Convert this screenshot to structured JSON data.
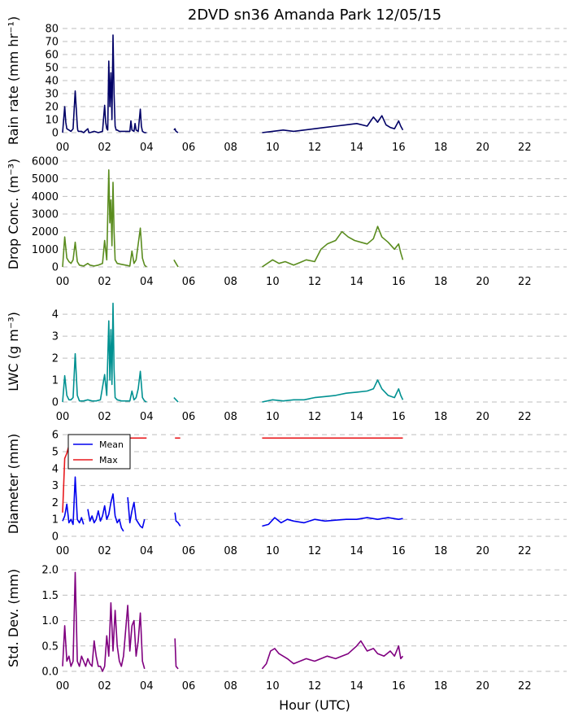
{
  "figure": {
    "title": "2DVD sn36 Amanda Park 12/05/15",
    "xlabel": "Hour (UTC)",
    "xtick_labels": [
      "00",
      "02",
      "04",
      "06",
      "08",
      "10",
      "12",
      "14",
      "16",
      "18",
      "20",
      "22"
    ]
  },
  "chart_data": [
    {
      "type": "line",
      "ylabel": "Rain rate (mm hr⁻¹)",
      "ylim": [
        0,
        80
      ],
      "yticks": [
        0,
        10,
        20,
        30,
        40,
        50,
        60,
        70,
        80
      ],
      "xlim": [
        0,
        24
      ],
      "grid": true,
      "series": [
        {
          "color": "#000066",
          "x": [
            0,
            0.1,
            0.15,
            0.2,
            0.3,
            0.4,
            0.5,
            0.6,
            0.7,
            0.72,
            0.75,
            0.8,
            0.9,
            1.0,
            1.2,
            1.25,
            1.3,
            1.5,
            1.7,
            1.9,
            2.0,
            2.05,
            2.1,
            2.15,
            2.2,
            2.25,
            2.3,
            2.35,
            2.4,
            2.45,
            2.5,
            2.55,
            2.6,
            2.7,
            2.8,
            3.0,
            3.2,
            3.25,
            3.3,
            3.4,
            3.45,
            3.5,
            3.6,
            3.7,
            3.75,
            3.8,
            3.9,
            4.0,
            null,
            5.3,
            5.35,
            5.4,
            5.5,
            null,
            9.5,
            10,
            10.5,
            11,
            11.5,
            12,
            12.5,
            13,
            13.5,
            14,
            14.5,
            14.8,
            15,
            15.2,
            15.4,
            15.6,
            15.8,
            16,
            16.1,
            16.2
          ],
          "y": [
            0,
            20,
            8,
            3,
            2,
            1,
            3,
            32,
            5,
            2,
            1,
            1,
            1,
            0,
            3,
            0,
            0,
            1,
            0,
            1,
            21,
            8,
            3,
            2,
            55,
            20,
            46,
            10,
            75,
            30,
            5,
            2,
            2,
            1,
            1,
            1,
            1,
            9,
            2,
            1,
            7,
            2,
            1,
            18,
            5,
            1,
            0,
            0,
            null,
            2,
            3,
            1,
            0,
            null,
            0,
            1,
            2,
            1,
            2,
            3,
            4,
            5,
            6,
            7,
            5,
            12,
            8,
            13,
            6,
            4,
            3,
            9,
            5,
            2
          ]
        }
      ]
    },
    {
      "type": "line",
      "ylabel": "Drop Conc. (m⁻³)",
      "ylim": [
        0,
        6000
      ],
      "yticks": [
        0,
        1000,
        2000,
        3000,
        4000,
        5000,
        6000
      ],
      "xlim": [
        0,
        24
      ],
      "grid": true,
      "series": [
        {
          "color": "#5a8c1e",
          "x": [
            0,
            0.1,
            0.2,
            0.3,
            0.4,
            0.5,
            0.6,
            0.7,
            0.8,
            1.0,
            1.2,
            1.3,
            1.5,
            1.7,
            1.9,
            2.0,
            2.1,
            2.2,
            2.25,
            2.3,
            2.35,
            2.4,
            2.45,
            2.5,
            2.6,
            2.8,
            3.0,
            3.2,
            3.3,
            3.4,
            3.5,
            3.6,
            3.7,
            3.8,
            3.9,
            4.0,
            null,
            5.3,
            5.4,
            5.5,
            null,
            9.5,
            10,
            10.3,
            10.6,
            11,
            11.3,
            11.6,
            12,
            12.3,
            12.6,
            13,
            13.3,
            13.6,
            13.9,
            14.2,
            14.5,
            14.8,
            15,
            15.2,
            15.5,
            15.8,
            16,
            16.1,
            16.2
          ],
          "y": [
            0,
            1700,
            500,
            300,
            200,
            400,
            1400,
            300,
            100,
            50,
            200,
            100,
            50,
            100,
            200,
            1500,
            400,
            5500,
            2500,
            3800,
            1200,
            4800,
            2000,
            400,
            200,
            150,
            100,
            50,
            900,
            200,
            400,
            1300,
            2200,
            500,
            100,
            0,
            null,
            400,
            200,
            0,
            null,
            0,
            400,
            200,
            300,
            100,
            250,
            400,
            300,
            1000,
            1300,
            1500,
            2000,
            1700,
            1500,
            1400,
            1300,
            1600,
            2300,
            1700,
            1400,
            1000,
            1300,
            800,
            400
          ]
        }
      ]
    },
    {
      "type": "line",
      "ylabel": "LWC (g m⁻³)",
      "ylim": [
        0,
        4.6
      ],
      "yticks": [
        0,
        1,
        2,
        3,
        4
      ],
      "xlim": [
        0,
        24
      ],
      "grid": true,
      "series": [
        {
          "color": "#009191",
          "x": [
            0,
            0.1,
            0.2,
            0.3,
            0.4,
            0.5,
            0.6,
            0.7,
            0.8,
            1.0,
            1.2,
            1.4,
            1.6,
            1.8,
            2.0,
            2.1,
            2.2,
            2.25,
            2.3,
            2.35,
            2.4,
            2.45,
            2.5,
            2.6,
            2.8,
            3.0,
            3.2,
            3.3,
            3.4,
            3.5,
            3.6,
            3.7,
            3.8,
            3.9,
            4.0,
            null,
            5.3,
            5.4,
            5.5,
            null,
            9.5,
            10,
            10.5,
            11,
            11.5,
            12,
            12.5,
            13,
            13.5,
            14,
            14.5,
            14.8,
            15,
            15.2,
            15.5,
            15.8,
            16,
            16.1,
            16.2
          ],
          "y": [
            0,
            1.2,
            0.3,
            0.1,
            0.1,
            0.2,
            2.2,
            0.3,
            0.05,
            0.05,
            0.1,
            0.05,
            0.05,
            0.1,
            1.25,
            0.3,
            3.7,
            1.0,
            3.3,
            0.8,
            4.5,
            1.5,
            0.2,
            0.1,
            0.05,
            0.05,
            0.05,
            0.5,
            0.1,
            0.2,
            0.6,
            1.4,
            0.2,
            0.05,
            0,
            null,
            0.2,
            0.1,
            0,
            null,
            0,
            0.1,
            0.05,
            0.1,
            0.1,
            0.2,
            0.25,
            0.3,
            0.4,
            0.45,
            0.5,
            0.6,
            1.0,
            0.6,
            0.3,
            0.2,
            0.6,
            0.3,
            0.1
          ]
        }
      ]
    },
    {
      "type": "line",
      "ylabel": "Diameter (mm)",
      "ylim": [
        0,
        6.2
      ],
      "yticks": [
        0,
        1,
        2,
        3,
        4,
        5,
        6
      ],
      "xlim": [
        0,
        24
      ],
      "grid": true,
      "legend": "top-left",
      "series": [
        {
          "name": "Mean",
          "color": "#0000ee",
          "x": [
            0,
            0.1,
            0.2,
            0.3,
            0.4,
            0.5,
            0.6,
            0.7,
            0.8,
            0.9,
            1.0,
            null,
            1.2,
            1.3,
            1.4,
            1.5,
            1.6,
            1.7,
            1.8,
            1.9,
            2.0,
            2.1,
            2.2,
            2.3,
            2.4,
            2.5,
            2.6,
            2.7,
            2.8,
            2.9,
            null,
            3.1,
            3.2,
            3.3,
            3.4,
            3.5,
            3.6,
            3.7,
            3.8,
            3.9,
            null,
            5.35,
            5.4,
            5.5,
            5.6,
            null,
            9.5,
            9.8,
            10.1,
            10.4,
            10.7,
            11,
            11.5,
            12,
            12.5,
            13,
            13.5,
            14,
            14.5,
            15,
            15.5,
            16,
            16.2
          ],
          "y": [
            0.9,
            1.2,
            1.9,
            0.8,
            1.0,
            0.7,
            3.5,
            1.0,
            0.8,
            1.1,
            0.7,
            null,
            1.6,
            0.9,
            1.2,
            0.8,
            1.0,
            1.5,
            0.9,
            1.2,
            1.8,
            1.0,
            1.3,
            2.0,
            2.5,
            1.2,
            0.8,
            1.0,
            0.5,
            0.3,
            null,
            2.3,
            0.8,
            1.5,
            2.0,
            1.0,
            0.8,
            0.6,
            0.5,
            1.0,
            null,
            1.4,
            0.9,
            0.8,
            0.6,
            null,
            0.6,
            0.7,
            1.1,
            0.8,
            1.0,
            0.9,
            0.8,
            1.0,
            0.9,
            0.95,
            1.0,
            1.0,
            1.1,
            1.0,
            1.1,
            1.0,
            1.05
          ]
        },
        {
          "name": "Max",
          "color": "#e8191d",
          "x": [
            0,
            0.1,
            0.2,
            0.4,
            0.6,
            0.8,
            1.0,
            1.2,
            1.4,
            1.6,
            1.8,
            2.0,
            2.2,
            2.4,
            2.6,
            2.8,
            3.0,
            3.2,
            3.4,
            3.6,
            3.8,
            4.0,
            null,
            5.35,
            5.6,
            null,
            9.5,
            16.2
          ],
          "y": [
            1.4,
            4.6,
            4.9,
            5.8,
            5.8,
            5.8,
            5.8,
            5.8,
            5.8,
            5.8,
            5.8,
            5.8,
            5.8,
            5.8,
            5.8,
            5.8,
            5.8,
            5.8,
            5.8,
            5.8,
            5.8,
            5.8,
            null,
            5.8,
            5.8,
            null,
            5.8,
            5.8
          ]
        }
      ]
    },
    {
      "type": "line",
      "ylabel": "Std. Dev. (mm)",
      "ylim": [
        0,
        2.1
      ],
      "yticks": [
        0,
        0.5,
        1.0,
        1.5,
        2.0
      ],
      "xlim": [
        0,
        24
      ],
      "grid": true,
      "series": [
        {
          "color": "#800080",
          "x": [
            0,
            0.1,
            0.2,
            0.3,
            0.4,
            0.5,
            0.6,
            0.7,
            0.8,
            0.9,
            1.0,
            1.1,
            1.2,
            1.3,
            1.4,
            1.5,
            1.6,
            1.7,
            1.8,
            1.9,
            2.0,
            2.1,
            2.2,
            2.3,
            2.4,
            2.5,
            2.6,
            2.7,
            2.8,
            2.9,
            3.0,
            3.1,
            3.2,
            3.3,
            3.4,
            3.5,
            3.6,
            3.7,
            3.8,
            3.9,
            null,
            5.35,
            5.4,
            5.5,
            null,
            9.5,
            9.7,
            9.9,
            10.1,
            10.3,
            10.5,
            10.7,
            11,
            11.3,
            11.6,
            12,
            12.3,
            12.6,
            13,
            13.3,
            13.6,
            14,
            14.2,
            14.5,
            14.8,
            15,
            15.3,
            15.6,
            15.8,
            16,
            16.1,
            16.2
          ],
          "y": [
            0.1,
            0.9,
            0.2,
            0.3,
            0.1,
            0.2,
            1.95,
            0.2,
            0.1,
            0.3,
            0.2,
            0.1,
            0.25,
            0.15,
            0.1,
            0.6,
            0.3,
            0.1,
            0.1,
            0.0,
            0.1,
            0.7,
            0.3,
            1.35,
            0.4,
            1.2,
            0.5,
            0.2,
            0.1,
            0.3,
            0.8,
            1.3,
            0.4,
            0.9,
            1.0,
            0.3,
            0.6,
            1.15,
            0.2,
            0.05,
            null,
            0.65,
            0.1,
            0.05,
            null,
            0.05,
            0.15,
            0.4,
            0.45,
            0.35,
            0.3,
            0.25,
            0.15,
            0.2,
            0.25,
            0.2,
            0.25,
            0.3,
            0.25,
            0.3,
            0.35,
            0.5,
            0.6,
            0.4,
            0.45,
            0.35,
            0.3,
            0.4,
            0.3,
            0.5,
            0.25,
            0.3
          ]
        }
      ]
    }
  ]
}
